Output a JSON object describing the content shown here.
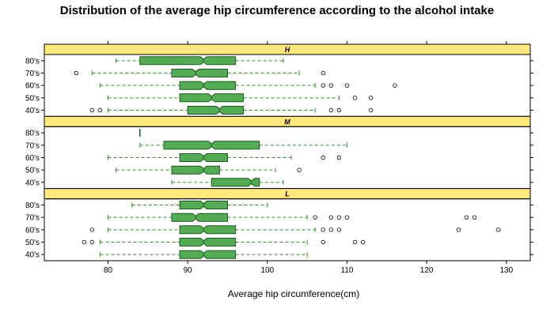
{
  "chart_data": {
    "type": "boxplot",
    "title": "Distribution of the average hip circumference according to the alcohol intake",
    "xlabel": "Average hip circumference(cm)",
    "ylabel": "",
    "xlim": [
      72,
      133
    ],
    "xticks": [
      80,
      90,
      100,
      110,
      120,
      130
    ],
    "categories": [
      "40's",
      "50's",
      "60's",
      "70's",
      "80's"
    ],
    "notched": true,
    "colors": {
      "box_fill": "#55aa55",
      "box_stroke": "#1e5a1e",
      "whisker": "#2e8b2e",
      "strip": "#ffe97f",
      "outlier": "#000000"
    },
    "panels": [
      {
        "label": "H",
        "series": [
          {
            "category": "40's",
            "whisker_low": 80,
            "q1": 90,
            "median": 94,
            "q3": 97,
            "whisker_high": 106,
            "outliers": [
              78,
              79,
              108,
              109,
              113
            ]
          },
          {
            "category": "50's",
            "whisker_low": 80,
            "q1": 89,
            "median": 93,
            "q3": 97,
            "whisker_high": 109,
            "outliers": [
              111,
              113
            ]
          },
          {
            "category": "60's",
            "whisker_low": 79,
            "q1": 89,
            "median": 92,
            "q3": 96,
            "whisker_high": 106,
            "outliers": [
              107,
              108,
              110,
              116
            ]
          },
          {
            "category": "70's",
            "whisker_low": 78,
            "q1": 88,
            "median": 91,
            "q3": 95,
            "whisker_high": 104,
            "outliers": [
              76,
              107
            ]
          },
          {
            "category": "80's",
            "whisker_low": 81,
            "q1": 84,
            "median": 92,
            "q3": 96,
            "whisker_high": 102,
            "outliers": []
          }
        ]
      },
      {
        "label": "M",
        "series": [
          {
            "category": "40's",
            "whisker_low": 88,
            "q1": 93,
            "median": 98,
            "q3": 99,
            "whisker_high": 102,
            "outliers": []
          },
          {
            "category": "50's",
            "whisker_low": 81,
            "q1": 88,
            "median": 92,
            "q3": 94,
            "whisker_high": 101,
            "outliers": [
              104
            ]
          },
          {
            "category": "60's",
            "whisker_low": 80,
            "q1": 89,
            "median": 92,
            "q3": 95,
            "whisker_high": 103,
            "outliers": [
              107,
              109
            ]
          },
          {
            "category": "70's",
            "whisker_low": 84,
            "q1": 87,
            "median": 93,
            "q3": 99,
            "whisker_high": 110,
            "outliers": []
          },
          {
            "category": "80's",
            "whisker_low": 84,
            "q1": 84,
            "median": 84,
            "q3": 84,
            "whisker_high": 84,
            "outliers": []
          }
        ]
      },
      {
        "label": "L",
        "series": [
          {
            "category": "40's",
            "whisker_low": 79,
            "q1": 89,
            "median": 92,
            "q3": 96,
            "whisker_high": 105,
            "outliers": []
          },
          {
            "category": "50's",
            "whisker_low": 79,
            "q1": 89,
            "median": 92,
            "q3": 96,
            "whisker_high": 105,
            "outliers": [
              77,
              78,
              107,
              111,
              112
            ]
          },
          {
            "category": "60's",
            "whisker_low": 80,
            "q1": 89,
            "median": 92,
            "q3": 96,
            "whisker_high": 106,
            "outliers": [
              78,
              107,
              108,
              109,
              124,
              129
            ]
          },
          {
            "category": "70's",
            "whisker_low": 80,
            "q1": 88,
            "median": 91,
            "q3": 95,
            "whisker_high": 105,
            "outliers": [
              106,
              108,
              109,
              110,
              125,
              126
            ]
          },
          {
            "category": "80's",
            "whisker_low": 83,
            "q1": 89,
            "median": 92,
            "q3": 95,
            "whisker_high": 100,
            "outliers": []
          }
        ]
      }
    ]
  }
}
